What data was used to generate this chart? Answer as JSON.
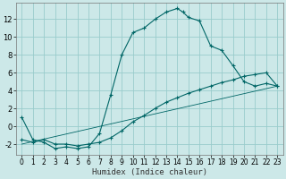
{
  "xlabel": "Humidex (Indice chaleur)",
  "background_color": "#cce8e8",
  "grid_color": "#99cccc",
  "line_color": "#006666",
  "xlim": [
    -0.5,
    23.5
  ],
  "ylim": [
    -3.2,
    13.8
  ],
  "x_ticks": [
    0,
    1,
    2,
    3,
    4,
    5,
    6,
    7,
    8,
    9,
    10,
    11,
    12,
    13,
    14,
    15,
    16,
    17,
    18,
    19,
    20,
    21,
    22,
    23
  ],
  "y_ticks": [
    -2,
    0,
    2,
    4,
    6,
    8,
    10,
    12
  ],
  "curve1_x": [
    0,
    1,
    2,
    3,
    4,
    5,
    6,
    7,
    8,
    9,
    10,
    11,
    12,
    13,
    14,
    14.5,
    15,
    16,
    17,
    18,
    19,
    20,
    21,
    22,
    23
  ],
  "curve1_y": [
    1,
    -1.5,
    -1.8,
    -2.5,
    -2.3,
    -2.5,
    -2.3,
    -0.8,
    3.5,
    8.0,
    10.5,
    11.0,
    12.0,
    12.8,
    13.2,
    12.8,
    12.2,
    11.8,
    9.0,
    8.5,
    6.8,
    5.0,
    4.5,
    4.8,
    4.5
  ],
  "curve2_x": [
    0,
    1,
    2,
    3,
    4,
    5,
    6,
    7,
    8,
    9,
    10,
    11,
    12,
    13,
    14,
    15,
    16,
    17,
    18,
    19,
    20,
    21,
    22,
    23
  ],
  "curve2_y": [
    -1.5,
    -1.8,
    -1.5,
    -2.0,
    -2.0,
    -2.2,
    -2.0,
    -1.8,
    -1.3,
    -0.5,
    0.5,
    1.2,
    2.0,
    2.7,
    3.2,
    3.7,
    4.1,
    4.5,
    4.9,
    5.2,
    5.6,
    5.8,
    6.0,
    4.5
  ],
  "curve3_x": [
    0,
    23
  ],
  "curve3_y": [
    -2.0,
    4.5
  ]
}
